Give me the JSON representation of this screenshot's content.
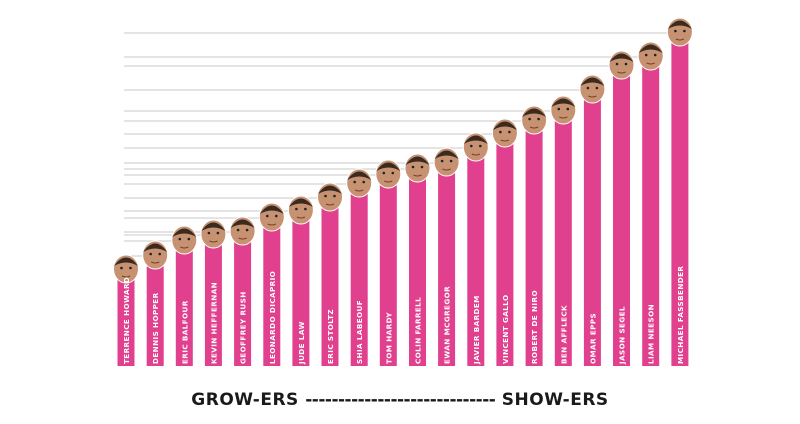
{
  "chart_data": {
    "type": "bar",
    "categories": [
      "TERRENCE HOWARD",
      "DENNIS HOPPER",
      "ERIC BALFOUR",
      "KEVIN HEFFERNAN",
      "GEOFFREY RUSH",
      "LEONARDO DICAPRIO",
      "JUDE LAW",
      "ERIC STOLTZ",
      "SHIA LABEOUF",
      "TOM HARDY",
      "COLIN FARRELL",
      "EWAN MCGREGOR",
      "JAVIER BARDEM",
      "VINCENT GALLO",
      "ROBERT DE NIRO",
      "BEN AFFLECK",
      "OMAR EPPS",
      "JASON SEGEL",
      "LIAM NEESON",
      "MICHAEL FASSBENDER"
    ],
    "values": [
      96,
      110,
      125,
      131,
      134,
      148,
      155,
      168,
      182,
      191,
      197,
      203,
      218,
      232,
      245,
      255,
      276,
      300,
      309,
      333
    ],
    "ylim": [
      0,
      355
    ],
    "bar_color": "#e0408e",
    "head_color": "#c69272",
    "hair_color": "#3a2a20",
    "grid": true
  },
  "footer": {
    "left": "GROW-ERS",
    "dashes": "-----------------------------",
    "right": "SHOW-ERS"
  }
}
